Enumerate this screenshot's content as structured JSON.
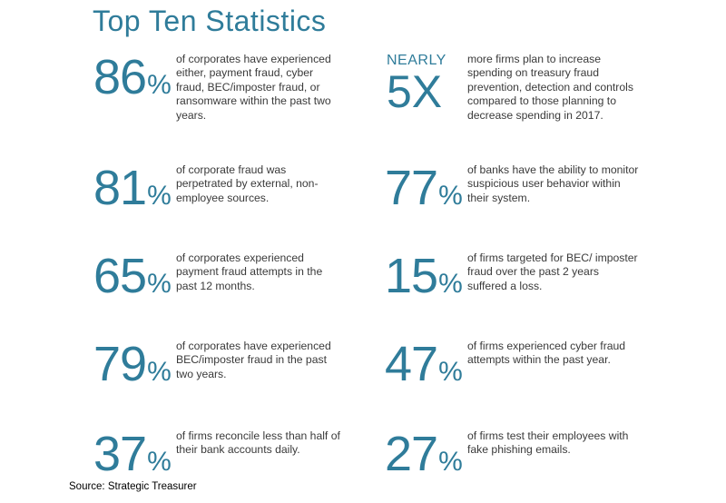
{
  "title": "Top Ten Statistics",
  "accent_color": "#2f7c9a",
  "stats_left": [
    {
      "number": "86",
      "unit": "%",
      "text": "of corporates have experienced either, payment fraud, cyber fraud, BEC/imposter fraud, or ransomware within the past two years."
    },
    {
      "number": "81",
      "unit": "%",
      "text": "of corporate fraud was perpetrated by external, non-employee sources."
    },
    {
      "number": "65",
      "unit": "%",
      "text": "of corporates experienced payment fraud attempts in the past 12 months."
    },
    {
      "number": "79",
      "unit": "%",
      "text": "of corporates have experienced BEC/imposter fraud in the past two years."
    },
    {
      "number": "37",
      "unit": "%",
      "text": "of firms reconcile less than half of their bank accounts daily."
    }
  ],
  "stats_right": [
    {
      "prefix": "NEARLY",
      "number": "5X",
      "unit": "",
      "text": "more firms plan to increase spending on treasury fraud prevention, detection and controls compared to those planning to decrease spending in 2017."
    },
    {
      "number": "77",
      "unit": "%",
      "text": "of banks have the ability to monitor suspicious user behavior within their system."
    },
    {
      "number": "15",
      "unit": "%",
      "text": "of firms targeted for BEC/ imposter fraud over the past 2 years suffered a loss."
    },
    {
      "number": "47",
      "unit": "%",
      "text": "of firms experienced cyber fraud attempts within the past year."
    },
    {
      "number": "27",
      "unit": "%",
      "text": "of firms test their employees with fake phishing emails."
    }
  ],
  "source": "Source: Strategic Treasurer"
}
